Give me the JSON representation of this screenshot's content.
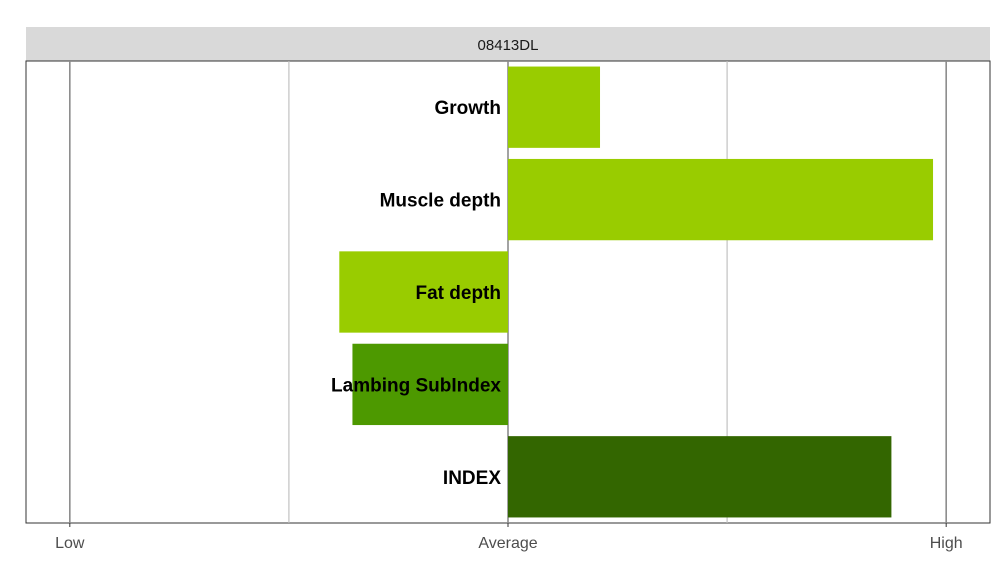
{
  "chart_data": {
    "type": "bar",
    "orientation": "horizontal",
    "panel_title": "08413DL",
    "categories": [
      "Growth",
      "Muscle depth",
      "Fat depth",
      "Lambing SubIndex",
      "INDEX"
    ],
    "values": [
      0.21,
      0.97,
      -0.385,
      -0.355,
      0.875
    ],
    "colors": [
      "#99cc00",
      "#99cc00",
      "#99cc00",
      "#4d9900",
      "#336600"
    ],
    "xlim": [
      -1.1,
      1.1
    ],
    "x_ticks": [
      {
        "value": -1,
        "label": "Low"
      },
      {
        "value": 0,
        "label": "Average"
      },
      {
        "value": 1,
        "label": "High"
      }
    ],
    "x_gridlines": [
      -1,
      -0.5,
      0,
      0.5,
      1
    ],
    "grid": true,
    "legend": "none",
    "xlabel": "",
    "ylabel": ""
  }
}
